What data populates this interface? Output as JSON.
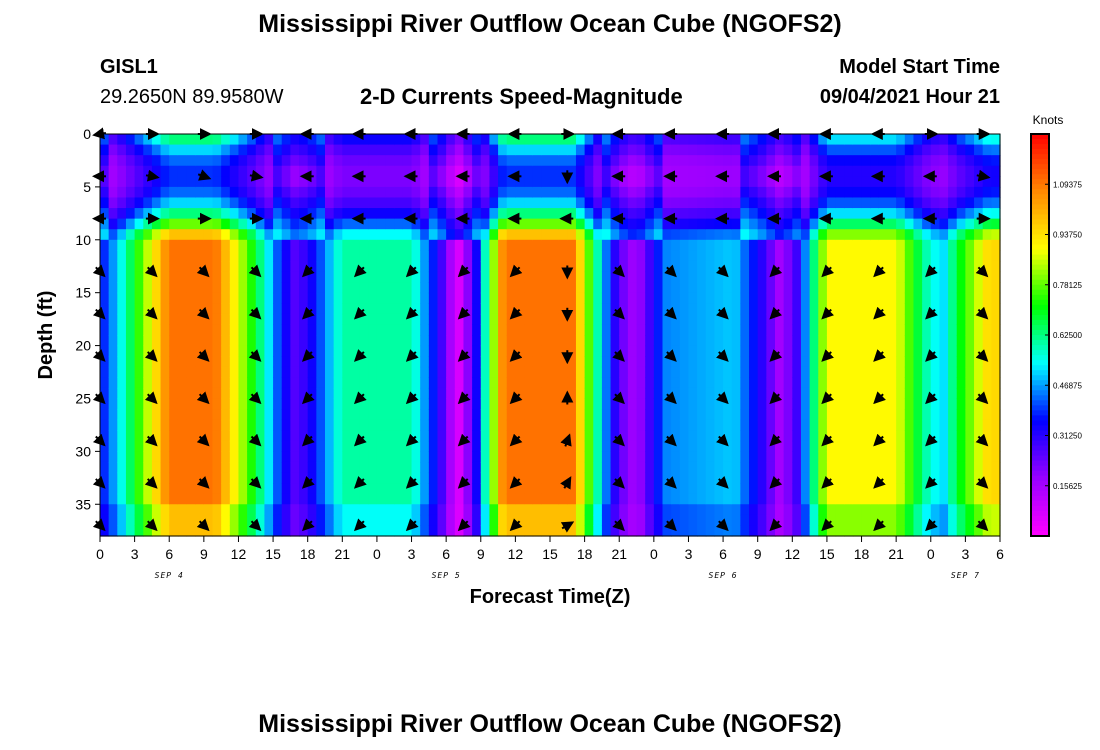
{
  "header": {
    "title": "Mississippi River Outflow Ocean Cube (NGOFS2)",
    "station": "GISL1",
    "coords": "29.2650N  89.9580W",
    "subtitle": "2-D Currents Speed-Magnitude",
    "model_start_label": "Model Start Time",
    "model_start_value": "09/04/2021 Hour 21"
  },
  "footer": {
    "title": "Mississippi River Outflow Ocean Cube (NGOFS2)"
  },
  "chart_data": {
    "type": "heatmap",
    "xlabel": "Forecast Time(Z)",
    "ylabel": "Depth (ft)",
    "x_tick_labels": [
      "0",
      "3",
      "6",
      "9",
      "12",
      "15",
      "18",
      "21",
      "0",
      "3",
      "6",
      "9",
      "12",
      "15",
      "18",
      "21",
      "0",
      "3",
      "6",
      "9",
      "12",
      "15",
      "18",
      "21",
      "0",
      "3",
      "6"
    ],
    "date_labels": [
      {
        "label": "SEP 4",
        "hour": 6
      },
      {
        "label": "SEP 5",
        "hour": 30
      },
      {
        "label": "SEP 6",
        "hour": 54
      },
      {
        "label": "SEP 7",
        "hour": 75
      }
    ],
    "x_range_hours": [
      0,
      78
    ],
    "y_ticks": [
      0,
      5,
      10,
      15,
      20,
      25,
      30,
      35
    ],
    "ylim": [
      0,
      38
    ],
    "colorbar": {
      "unit": "Knots",
      "range": [
        0,
        1.25
      ],
      "tick_labels": [
        "1.09375",
        "0.93750",
        "0.78125",
        "0.62500",
        "0.46875",
        "0.31250",
        "0.15625"
      ],
      "tick_values": [
        1.09375,
        0.9375,
        0.78125,
        0.625,
        0.46875,
        0.3125,
        0.15625
      ],
      "colors": [
        "#ff00ff",
        "#9900ff",
        "#0000ff",
        "#00ffff",
        "#00ff00",
        "#ffff00",
        "#ff8800",
        "#ff0000"
      ]
    },
    "speed_profile": {
      "hours": [
        0,
        1.5,
        6,
        10,
        13,
        15.5,
        17,
        18.5,
        21,
        27,
        29.5,
        31,
        32.5,
        35,
        41,
        43.5,
        45,
        46.5,
        49,
        55,
        57.5,
        59,
        60.5,
        63,
        69,
        71.5,
        73,
        74.5,
        77,
        78
      ],
      "speed_knots": [
        0.35,
        0.5,
        1.1,
        1.1,
        0.75,
        0.4,
        0.25,
        0.35,
        0.6,
        0.6,
        0.3,
        0.05,
        0.3,
        1.1,
        1.1,
        0.5,
        0.25,
        0.15,
        0.45,
        0.5,
        0.3,
        0.15,
        0.3,
        0.9,
        0.9,
        0.6,
        0.5,
        0.7,
        0.95,
        0.95
      ]
    },
    "depth_levels_ft": [
      0,
      4,
      8,
      13,
      17,
      21,
      25,
      29,
      33,
      37
    ],
    "vector_hours": [
      0,
      4.5,
      9,
      13.5,
      18,
      22.5,
      27,
      31.5,
      36,
      40.5,
      45,
      49.5,
      54,
      58.5,
      63,
      67.5,
      72,
      76.5
    ],
    "vector_angles_deg": [
      [
        170,
        0,
        0,
        0,
        180,
        180,
        180,
        180,
        180,
        0,
        180,
        180,
        180,
        180,
        180,
        180,
        0,
        0
      ],
      [
        180,
        10,
        20,
        10,
        180,
        180,
        180,
        180,
        180,
        90,
        180,
        180,
        180,
        180,
        180,
        180,
        180,
        10
      ],
      [
        180,
        0,
        0,
        0,
        180,
        180,
        180,
        180,
        180,
        180,
        180,
        180,
        180,
        180,
        180,
        180,
        180,
        0
      ],
      [
        45,
        45,
        45,
        45,
        135,
        135,
        135,
        135,
        135,
        90,
        45,
        45,
        45,
        135,
        135,
        135,
        135,
        45
      ],
      [
        45,
        45,
        45,
        45,
        135,
        135,
        135,
        135,
        135,
        90,
        45,
        45,
        45,
        135,
        135,
        135,
        135,
        45
      ],
      [
        45,
        45,
        45,
        45,
        135,
        135,
        135,
        135,
        135,
        90,
        45,
        45,
        45,
        135,
        135,
        135,
        135,
        45
      ],
      [
        45,
        45,
        45,
        45,
        135,
        135,
        135,
        135,
        135,
        -90,
        45,
        45,
        45,
        135,
        135,
        135,
        135,
        45
      ],
      [
        45,
        45,
        45,
        45,
        135,
        135,
        135,
        135,
        135,
        -70,
        45,
        45,
        45,
        135,
        135,
        135,
        135,
        45
      ],
      [
        45,
        45,
        45,
        45,
        135,
        135,
        135,
        135,
        135,
        -60,
        45,
        45,
        45,
        135,
        135,
        135,
        135,
        45
      ],
      [
        45,
        45,
        45,
        45,
        135,
        135,
        135,
        135,
        135,
        -30,
        45,
        45,
        45,
        135,
        135,
        135,
        135,
        45
      ]
    ]
  }
}
